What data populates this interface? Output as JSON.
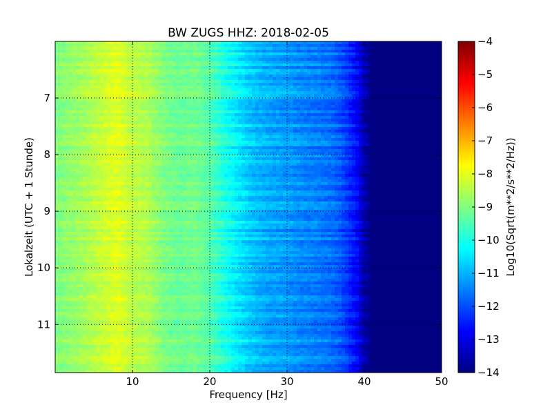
{
  "chart_data": {
    "type": "heatmap",
    "title": "BW ZUGS HHZ: 2018-02-05",
    "xlabel": "Frequency [Hz]",
    "ylabel": "Lokalzeit (UTC + 1 Stunde)",
    "colorbar_label": "Log10(Sqrt(m**2/s**2/Hz))",
    "colormap": "jet",
    "xlim": [
      0,
      50
    ],
    "ylim": [
      11.85,
      6.0
    ],
    "y_inverted": true,
    "grid": true,
    "x_ticks": [
      10,
      20,
      30,
      40,
      50
    ],
    "y_ticks": [
      7,
      8,
      9,
      10,
      11
    ],
    "colorbar_range": [
      -14,
      -4
    ],
    "colorbar_ticks": [
      -4,
      -5,
      -6,
      -7,
      -8,
      -9,
      -10,
      -11,
      -12,
      -13,
      -14
    ],
    "frequency_profile": {
      "frequency_hz": [
        0,
        3,
        6,
        8,
        10,
        12,
        14,
        16,
        18,
        20,
        22,
        24,
        26,
        28,
        30,
        32,
        34,
        36,
        37,
        38,
        39,
        40,
        41,
        42,
        45,
        50
      ],
      "log10_amplitude": [
        -9.0,
        -8.7,
        -8.3,
        -8.0,
        -8.4,
        -8.5,
        -9.0,
        -9.2,
        -9.1,
        -9.4,
        -10.0,
        -10.5,
        -10.9,
        -11.1,
        -11.2,
        -11.4,
        -11.5,
        -11.7,
        -11.9,
        -12.3,
        -12.7,
        -13.5,
        -14.0,
        -14.0,
        -14.0,
        -14.0
      ]
    }
  }
}
